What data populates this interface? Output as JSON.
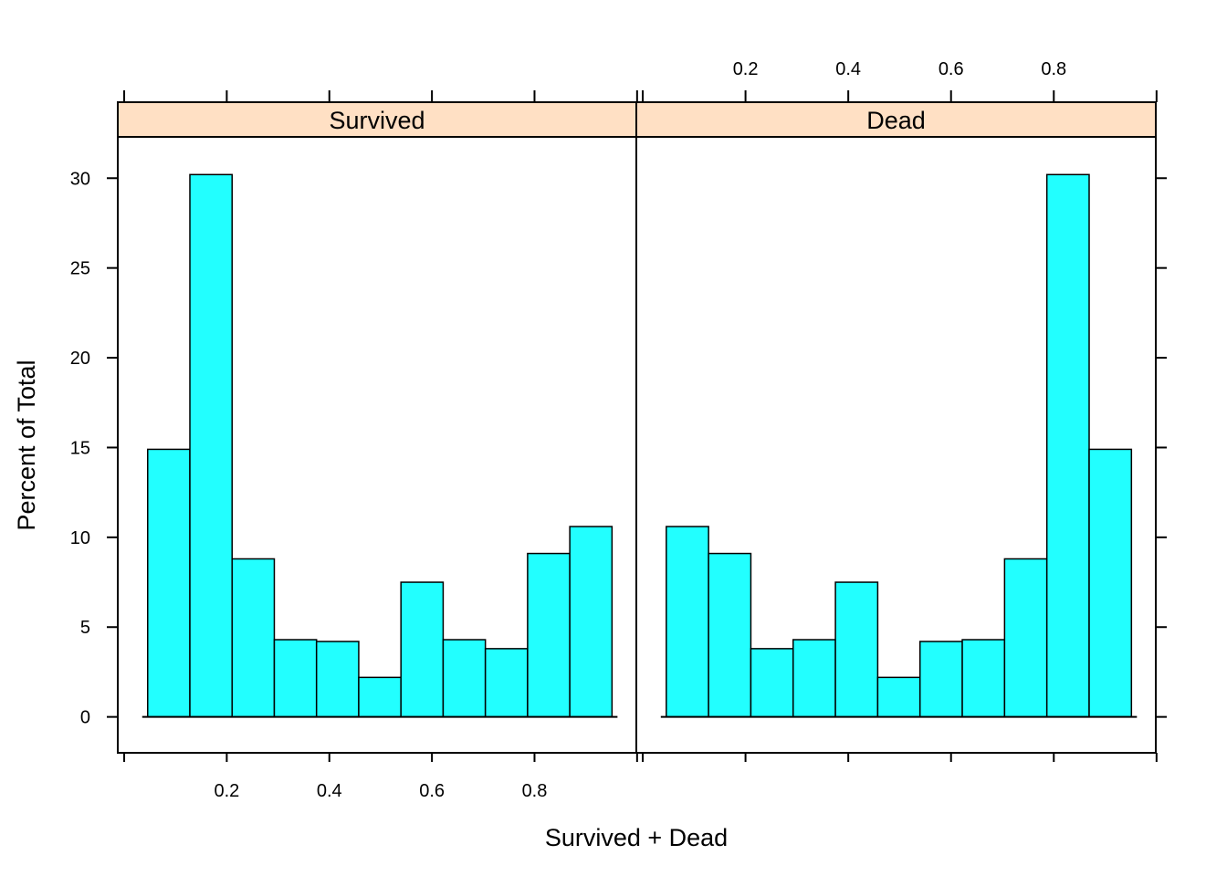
{
  "chart_data": {
    "type": "bar",
    "subtype": "histogram",
    "xlabel": "Survived + Dead",
    "ylabel": "Percent of Total",
    "ylim": [
      -2,
      32.3
    ],
    "xlim": [
      -0.0125,
      0.9985
    ],
    "y_ticks": [
      0,
      5,
      10,
      15,
      20,
      25,
      30
    ],
    "x_ticks": [
      0.2,
      0.4,
      0.6,
      0.8
    ],
    "bar_color": "#22ffff",
    "strip_color": "#ffe0c4",
    "panels": [
      {
        "name": "Survived",
        "x_tick_labels_position": "bottom",
        "bins": [
          {
            "x0": 0.0458,
            "x1": 0.1281,
            "value": 14.9
          },
          {
            "x0": 0.1281,
            "x1": 0.2104,
            "value": 30.2
          },
          {
            "x0": 0.2104,
            "x1": 0.2927,
            "value": 8.8
          },
          {
            "x0": 0.2927,
            "x1": 0.375,
            "value": 4.3
          },
          {
            "x0": 0.375,
            "x1": 0.4573,
            "value": 4.2
          },
          {
            "x0": 0.4573,
            "x1": 0.5396,
            "value": 2.2
          },
          {
            "x0": 0.5396,
            "x1": 0.6219,
            "value": 7.5
          },
          {
            "x0": 0.6219,
            "x1": 0.7042,
            "value": 4.3
          },
          {
            "x0": 0.7042,
            "x1": 0.7865,
            "value": 3.8
          },
          {
            "x0": 0.7865,
            "x1": 0.8688,
            "value": 9.1
          },
          {
            "x0": 0.8688,
            "x1": 0.9511,
            "value": 10.6
          }
        ]
      },
      {
        "name": "Dead",
        "x_tick_labels_position": "top",
        "bins": [
          {
            "x0": 0.0458,
            "x1": 0.1281,
            "value": 10.6
          },
          {
            "x0": 0.1281,
            "x1": 0.2104,
            "value": 9.1
          },
          {
            "x0": 0.2104,
            "x1": 0.2927,
            "value": 3.8
          },
          {
            "x0": 0.2927,
            "x1": 0.375,
            "value": 4.3
          },
          {
            "x0": 0.375,
            "x1": 0.4573,
            "value": 7.5
          },
          {
            "x0": 0.4573,
            "x1": 0.5396,
            "value": 2.2
          },
          {
            "x0": 0.5396,
            "x1": 0.6219,
            "value": 4.2
          },
          {
            "x0": 0.6219,
            "x1": 0.7042,
            "value": 4.3
          },
          {
            "x0": 0.7042,
            "x1": 0.7865,
            "value": 8.8
          },
          {
            "x0": 0.7865,
            "x1": 0.8688,
            "value": 30.2
          },
          {
            "x0": 0.8688,
            "x1": 0.9511,
            "value": 14.9
          }
        ]
      }
    ]
  }
}
